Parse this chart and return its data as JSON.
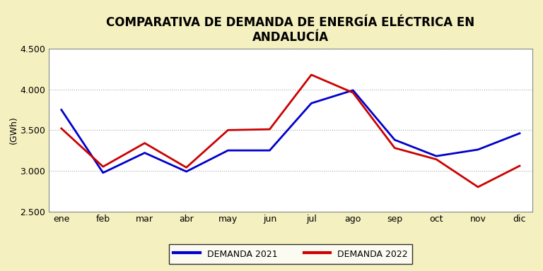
{
  "title": "COMPARATIVA DE DEMANDA DE ENERGÍA ELÉCTRICA EN\nANDALUCÍA",
  "months": [
    "ene",
    "feb",
    "mar",
    "abr",
    "may",
    "jun",
    "jul",
    "ago",
    "sep",
    "oct",
    "nov",
    "dic"
  ],
  "demanda_2021": [
    3750,
    2975,
    3220,
    2990,
    3250,
    3250,
    3830,
    3990,
    3380,
    3180,
    3260,
    3460
  ],
  "demanda_2022": [
    3520,
    3050,
    3340,
    3040,
    3500,
    3510,
    4180,
    3960,
    3280,
    3140,
    2800,
    3060
  ],
  "color_2021": "#0000cc",
  "color_2022": "#cc0000",
  "ylabel": "(GWh)",
  "ylim": [
    2500,
    4500
  ],
  "yticks": [
    2500,
    3000,
    3500,
    4000,
    4500
  ],
  "fig_background_color": "#f5f0c0",
  "plot_bg_color": "#ffffff",
  "grid_color": "#aaaaaa",
  "legend_2021": "DEMANDA 2021",
  "legend_2022": "DEMANDA 2022",
  "title_fontsize": 12,
  "axis_fontsize": 9,
  "legend_fontsize": 9,
  "line_width": 2.0
}
